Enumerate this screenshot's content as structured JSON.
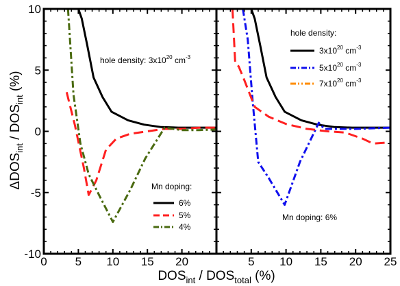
{
  "figure": {
    "ylabel_main": "ΔDOS",
    "ylabel_sub1": "int",
    "ylabel_mid": " / DOS",
    "ylabel_sub2": "int",
    "ylabel_tail": " (%)",
    "xlabel_main": "DOS",
    "xlabel_sub1": "int",
    "xlabel_mid": " / DOS",
    "xlabel_sub2": "total",
    "xlabel_tail": " (%)"
  },
  "chart_data": [
    {
      "type": "line",
      "panel": "left",
      "title": "",
      "xlim": [
        0,
        25
      ],
      "ylim": [
        -10,
        10
      ],
      "x_ticks": [
        0,
        5,
        10,
        15,
        20
      ],
      "y_ticks": [
        -10,
        -5,
        0,
        5,
        10
      ],
      "annotation_base": "hole density: 3x10",
      "annotation_sup": "20",
      "annotation_unit": " cm",
      "annotation_unit_sup": "-3",
      "legend_title": "Mn doping:",
      "legend_position": "lower-right",
      "series": [
        {
          "name": "6%",
          "color": "#000000",
          "style": "solid",
          "x": [
            5.0,
            5.5,
            6.3,
            7.2,
            8.5,
            9.8,
            12.2,
            14.5,
            17.0,
            19.5,
            22.0,
            25.0
          ],
          "y": [
            10.0,
            9.2,
            7.0,
            4.4,
            2.8,
            1.6,
            0.9,
            0.55,
            0.35,
            0.3,
            0.3,
            0.3
          ]
        },
        {
          "name": "5%",
          "color": "#ff2020",
          "style": "dashed",
          "x": [
            3.3,
            4.5,
            5.8,
            6.5,
            7.6,
            9.0,
            10.5,
            12.5,
            15.0,
            17.5,
            20.0,
            22.5,
            25.0
          ],
          "y": [
            3.2,
            0.5,
            -3.0,
            -5.2,
            -4.0,
            -1.5,
            -0.6,
            -0.2,
            0.0,
            0.2,
            0.2,
            0.3,
            0.3
          ]
        },
        {
          "name": "4%",
          "color": "#4a6a10",
          "style": "dashdot",
          "x": [
            3.5,
            4.3,
            5.3,
            6.5,
            8.0,
            10.0,
            12.5,
            14.7,
            17.5,
            20.0,
            22.5,
            25.0
          ],
          "y": [
            10.0,
            3.0,
            -1.0,
            -3.5,
            -5.2,
            -7.4,
            -4.8,
            -2.2,
            0.3,
            0.1,
            0.1,
            0.15
          ]
        }
      ]
    },
    {
      "type": "line",
      "panel": "right",
      "title": "",
      "xlim": [
        0,
        25
      ],
      "ylim": [
        -10,
        10
      ],
      "x_ticks": [
        5,
        10,
        15,
        20,
        25
      ],
      "y_ticks": [
        -10,
        -5,
        0,
        5,
        10
      ],
      "annotation": "Mn doping: 6%",
      "legend_title": "hole density:",
      "legend_position": "upper-right",
      "series": [
        {
          "name_base": "3x10",
          "name_sup": "20",
          "name_unit": " cm",
          "name_unit_sup": "-3",
          "color": "#000000",
          "style": "solid",
          "x": [
            5.0,
            5.5,
            6.3,
            7.2,
            8.5,
            9.8,
            12.2,
            14.5,
            17.0,
            19.5,
            22.0,
            25.0
          ],
          "y": [
            10.0,
            9.2,
            7.0,
            4.4,
            2.8,
            1.6,
            0.9,
            0.55,
            0.35,
            0.3,
            0.3,
            0.3
          ]
        },
        {
          "name_base": "5x10",
          "name_sup": "20",
          "name_unit": " cm",
          "name_unit_sup": "-3",
          "color": "#1010ee",
          "style": "dashdot",
          "x": [
            3.8,
            4.5,
            5.2,
            6.0,
            7.5,
            9.8,
            12.0,
            14.7,
            15.5,
            17.5,
            20.0,
            22.5,
            25.0
          ],
          "y": [
            10.0,
            7.5,
            2.5,
            -2.5,
            -3.8,
            -6.0,
            -2.5,
            0.7,
            0.2,
            0.2,
            0.2,
            0.25,
            0.3
          ]
        },
        {
          "name_base": "7x10",
          "name_sup": "20",
          "name_unit": " cm",
          "name_unit_sup": "-3",
          "color": "#ff8c00",
          "style": "dashdotdot",
          "x": [],
          "y": []
        },
        {
          "name": "",
          "color": "#ff2020",
          "style": "dashed",
          "x": [
            2.3,
            2.7,
            3.2,
            4.0,
            5.5,
            7.5,
            10.0,
            13.0,
            16.0,
            18.5,
            21.0,
            22.5,
            25.0
          ],
          "y": [
            10.0,
            5.6,
            5.3,
            4.2,
            2.0,
            1.2,
            0.6,
            0.2,
            0.0,
            -0.1,
            -0.6,
            -1.0,
            -0.9
          ]
        }
      ]
    }
  ]
}
